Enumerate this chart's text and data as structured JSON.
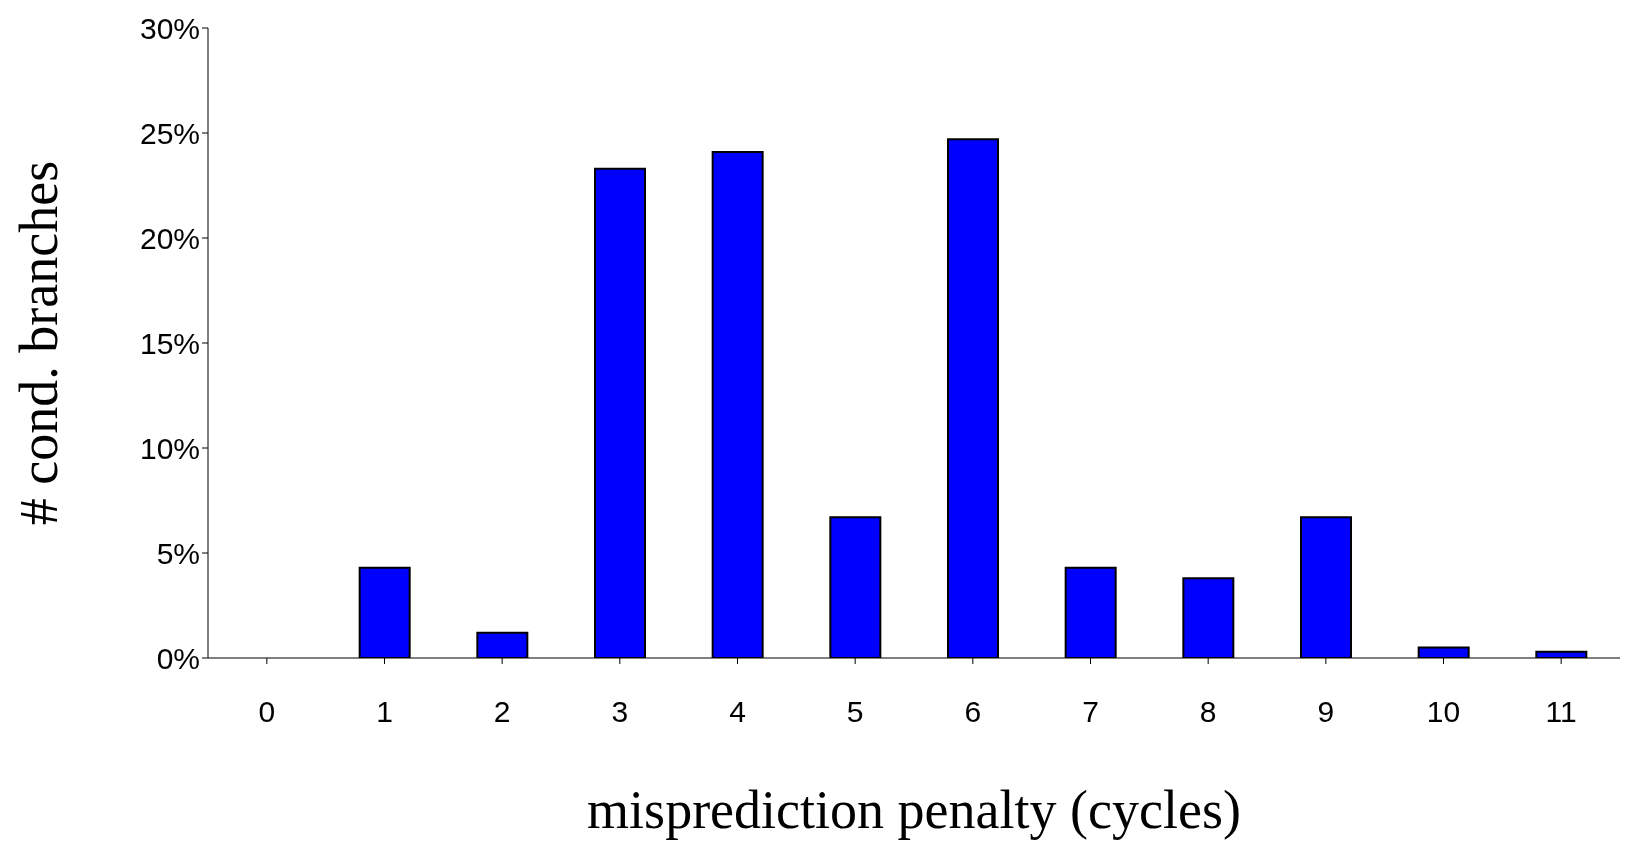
{
  "chart_data": {
    "type": "bar",
    "xlabel": "misprediction penalty (cycles)",
    "ylabel": "# cond. branches",
    "categories": [
      "0",
      "1",
      "2",
      "3",
      "4",
      "5",
      "6",
      "7",
      "8",
      "9",
      "10",
      "11"
    ],
    "values": [
      0,
      4.3,
      1.2,
      23.3,
      24.1,
      6.7,
      24.7,
      4.3,
      3.8,
      6.7,
      0.5,
      0.3
    ],
    "color": "#0000ff",
    "ylim": [
      0,
      30
    ],
    "yticks": [
      {
        "value": 0,
        "label": "0%"
      },
      {
        "value": 5,
        "label": "5%"
      },
      {
        "value": 10,
        "label": "10%"
      },
      {
        "value": 15,
        "label": "15%"
      },
      {
        "value": 20,
        "label": "20%"
      },
      {
        "value": 25,
        "label": "25%"
      },
      {
        "value": 30,
        "label": "30%"
      }
    ],
    "grid": false
  }
}
